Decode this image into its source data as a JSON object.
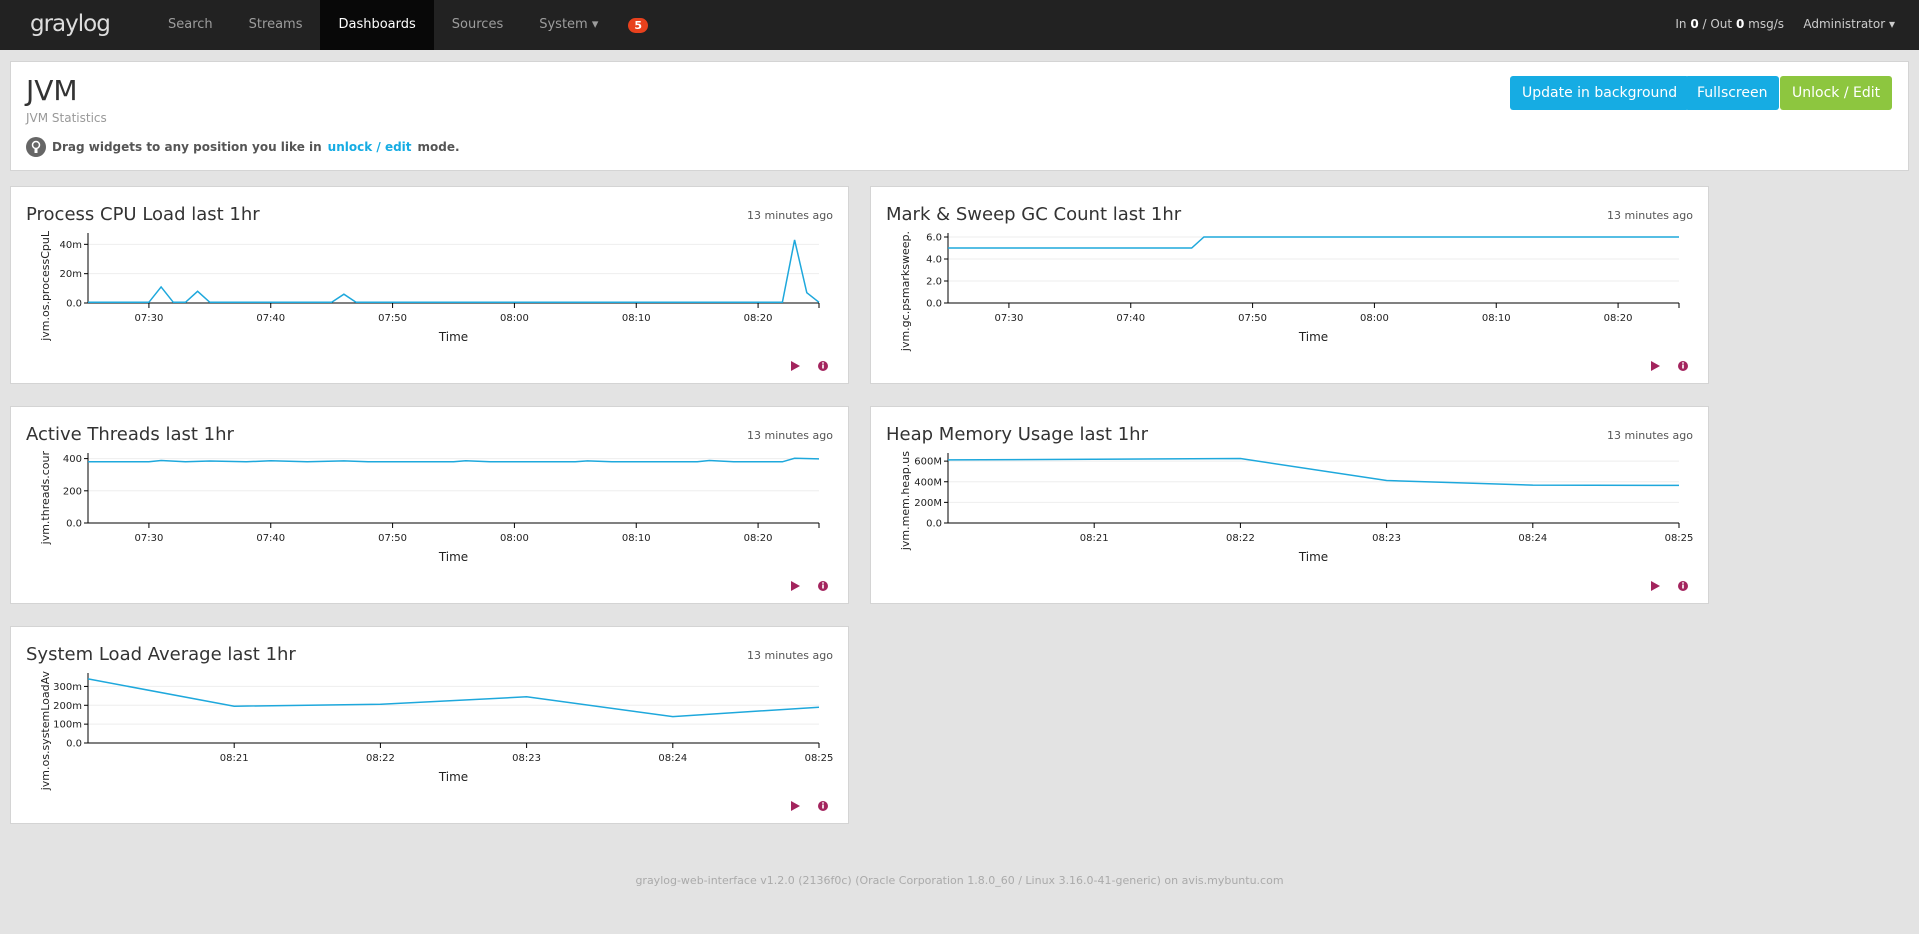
{
  "nav": {
    "logo": "graylog",
    "items": [
      "Search",
      "Streams",
      "Dashboards",
      "Sources",
      "System"
    ],
    "active": "Dashboards",
    "badge": 5,
    "throughput": {
      "in_label": "In",
      "in": 0,
      "out_label": "/ Out",
      "out": 0,
      "unit": "msg/s"
    },
    "user": "Administrator"
  },
  "header": {
    "title": "JVM",
    "subtitle": "JVM Statistics",
    "hint_prefix": "Drag widgets to any position you like in",
    "hint_link": "unlock / edit",
    "hint_suffix": "mode.",
    "buttons": [
      "Update in background",
      "Fullscreen",
      "Unlock / Edit"
    ]
  },
  "chart_data": [
    {
      "type": "line",
      "title": "Process CPU Load last 1hr",
      "timestamp": "13 minutes ago",
      "y_label": "jvm.os.processCpuL",
      "x_label": "Time",
      "color": "#1ea8dc",
      "x": [
        "07:25",
        "07:30",
        "07:31",
        "07:32",
        "07:33",
        "07:34",
        "07:35",
        "07:45",
        "07:46",
        "07:47",
        "08:22",
        "08:23",
        "08:24",
        "08:25"
      ],
      "values": [
        0.0005,
        0.0005,
        0.011,
        0.0005,
        0.0005,
        0.008,
        0.0005,
        0.0005,
        0.006,
        0.0005,
        0.0005,
        0.043,
        0.007,
        0.0005
      ],
      "xlim": [
        "07:25",
        "08:25"
      ],
      "xticks": [
        "07:30",
        "07:40",
        "07:50",
        "08:00",
        "08:10",
        "08:20"
      ],
      "ylim": [
        0,
        0.045
      ],
      "yticks": [
        {
          "value": 0,
          "label": "0.0"
        },
        {
          "value": 0.02,
          "label": "20m"
        },
        {
          "value": 0.04,
          "label": "40m"
        }
      ],
      "grid": true
    },
    {
      "type": "line",
      "title": "Mark & Sweep GC Count last 1hr",
      "timestamp": "13 minutes ago",
      "y_label": "jvm.gc.psmarksweep.",
      "x_label": "Time",
      "color": "#1ea8dc",
      "x": [
        "07:25",
        "07:45",
        "07:46",
        "08:25"
      ],
      "values": [
        5,
        5,
        6,
        6
      ],
      "xlim": [
        "07:25",
        "08:25"
      ],
      "xticks": [
        "07:30",
        "07:40",
        "07:50",
        "08:00",
        "08:10",
        "08:20"
      ],
      "ylim": [
        0,
        6
      ],
      "yticks": [
        {
          "value": 0,
          "label": "0.0"
        },
        {
          "value": 2,
          "label": "2.0"
        },
        {
          "value": 4,
          "label": "4.0"
        },
        {
          "value": 6,
          "label": "6.0"
        }
      ],
      "grid": true
    },
    {
      "type": "line",
      "title": "Active Threads last 1hr",
      "timestamp": "13 minutes ago",
      "y_label": "jvm.threads.cour",
      "x_label": "Time",
      "color": "#1ea8dc",
      "x": [
        "07:25",
        "07:30",
        "07:31",
        "07:33",
        "07:35",
        "07:38",
        "07:40",
        "07:43",
        "07:46",
        "07:48",
        "07:55",
        "07:56",
        "07:58",
        "08:05",
        "08:06",
        "08:08",
        "08:15",
        "08:16",
        "08:18",
        "08:22",
        "08:23",
        "08:25"
      ],
      "values": [
        380,
        380,
        388,
        380,
        385,
        380,
        387,
        380,
        386,
        380,
        380,
        387,
        380,
        380,
        386,
        380,
        380,
        388,
        380,
        380,
        402,
        398
      ],
      "xlim": [
        "07:25",
        "08:25"
      ],
      "xticks": [
        "07:30",
        "07:40",
        "07:50",
        "08:00",
        "08:10",
        "08:20"
      ],
      "ylim": [
        0,
        410
      ],
      "yticks": [
        {
          "value": 0,
          "label": "0.0"
        },
        200,
        400
      ],
      "grid": true
    },
    {
      "type": "line",
      "title": "Heap Memory Usage last 1hr",
      "timestamp": "13 minutes ago",
      "y_label": "jvm.mem.heap.us",
      "x_label": "Time",
      "color": "#1ea8dc",
      "x": [
        "08:20",
        "08:21",
        "08:22",
        "08:23",
        "08:24",
        "08:25"
      ],
      "values": [
        612000000,
        618000000,
        625000000,
        412000000,
        368000000,
        365000000
      ],
      "xlim": [
        "08:20",
        "08:25"
      ],
      "xticks": [
        "08:21",
        "08:22",
        "08:23",
        "08:24",
        "08:25"
      ],
      "ylim": [
        0,
        640000000
      ],
      "yticks": [
        {
          "value": 0,
          "label": "0.0"
        },
        {
          "value": 200000000,
          "label": "200M"
        },
        {
          "value": 400000000,
          "label": "400M"
        },
        {
          "value": 600000000,
          "label": "600M"
        }
      ],
      "grid": true
    },
    {
      "type": "line",
      "title": "System Load Average last 1hr",
      "timestamp": "13 minutes ago",
      "y_label": "jvm.os.systemLoadAv",
      "x_label": "Time",
      "color": "#1ea8dc",
      "x": [
        "08:20",
        "08:21",
        "08:22",
        "08:23",
        "08:24",
        "08:25"
      ],
      "values": [
        0.34,
        0.195,
        0.205,
        0.245,
        0.14,
        0.19
      ],
      "xlim": [
        "08:20",
        "08:25"
      ],
      "xticks": [
        "08:21",
        "08:22",
        "08:23",
        "08:24",
        "08:25"
      ],
      "ylim": [
        0,
        0.35
      ],
      "yticks": [
        {
          "value": 0,
          "label": "0.0"
        },
        {
          "value": 0.1,
          "label": "100m"
        },
        {
          "value": 0.2,
          "label": "200m"
        },
        {
          "value": 0.3,
          "label": "300m"
        }
      ],
      "grid": true
    }
  ],
  "footer": "graylog-web-interface v1.2.0 (2136f0c) (Oracle Corporation 1.8.0_60 / Linux 3.16.0-41-generic) on avis.mybuntu.com"
}
